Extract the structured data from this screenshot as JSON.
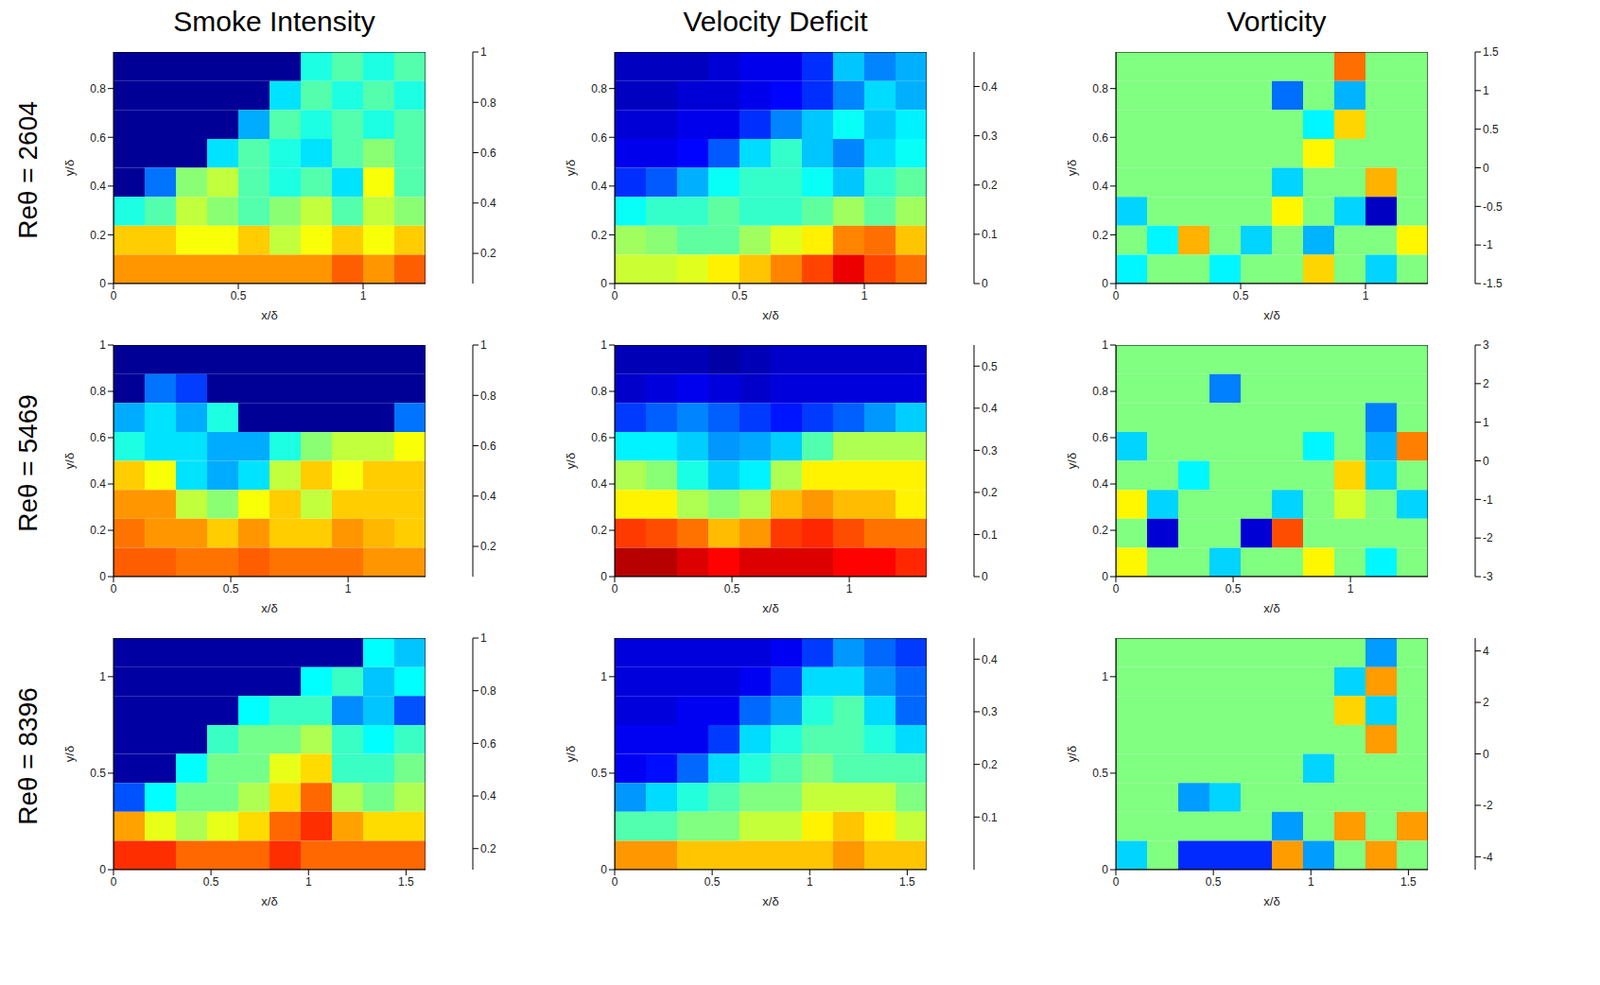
{
  "column_titles": [
    "Smoke Intensity",
    "Velocity Deficit",
    "Vorticity"
  ],
  "row_labels": [
    "Reθ = 2604",
    "Reθ = 5469",
    "Reθ = 8396"
  ],
  "chart_data": [
    {
      "type": "heatmap",
      "x_label": "x/δ",
      "y_label": "y/δ",
      "xlim": [
        0,
        1.25
      ],
      "ylim": [
        0,
        0.95
      ],
      "xticks": [
        0,
        0.5,
        1
      ],
      "yticks": [
        0,
        0.2,
        0.4,
        0.6,
        0.8
      ],
      "colorbar": {
        "range": [
          0.08,
          1
        ],
        "ticks": [
          0.2,
          0.4,
          0.6,
          0.8,
          1
        ]
      },
      "cells": [
        [
          0.1,
          0.1,
          0.1,
          0.1,
          0.1,
          0.1,
          0.45,
          0.5,
          0.45,
          0.5
        ],
        [
          0.1,
          0.1,
          0.1,
          0.1,
          0.1,
          0.4,
          0.5,
          0.45,
          0.5,
          0.45
        ],
        [
          0.1,
          0.1,
          0.1,
          0.1,
          0.35,
          0.5,
          0.45,
          0.5,
          0.45,
          0.5
        ],
        [
          0.1,
          0.1,
          0.1,
          0.4,
          0.5,
          0.45,
          0.4,
          0.5,
          0.55,
          0.5
        ],
        [
          0.1,
          0.3,
          0.55,
          0.6,
          0.5,
          0.45,
          0.5,
          0.4,
          0.65,
          0.5
        ],
        [
          0.45,
          0.5,
          0.6,
          0.55,
          0.5,
          0.55,
          0.6,
          0.5,
          0.6,
          0.55
        ],
        [
          0.7,
          0.7,
          0.65,
          0.65,
          0.7,
          0.6,
          0.65,
          0.7,
          0.65,
          0.7
        ],
        [
          0.75,
          0.75,
          0.75,
          0.75,
          0.75,
          0.75,
          0.75,
          0.8,
          0.75,
          0.8
        ]
      ]
    },
    {
      "type": "heatmap",
      "x_label": "x/δ",
      "y_label": "y/δ",
      "xlim": [
        0,
        1.25
      ],
      "ylim": [
        0,
        0.95
      ],
      "xticks": [
        0,
        0.5,
        1
      ],
      "yticks": [
        0,
        0.2,
        0.4,
        0.6,
        0.8
      ],
      "colorbar": {
        "range": [
          0,
          0.47
        ],
        "ticks": [
          0,
          0.1,
          0.2,
          0.3,
          0.4
        ]
      },
      "cells": [
        [
          0.03,
          0.03,
          0.03,
          0.04,
          0.05,
          0.05,
          0.08,
          0.15,
          0.12,
          0.14
        ],
        [
          0.03,
          0.03,
          0.04,
          0.04,
          0.05,
          0.06,
          0.08,
          0.12,
          0.16,
          0.14
        ],
        [
          0.04,
          0.04,
          0.05,
          0.05,
          0.08,
          0.12,
          0.15,
          0.18,
          0.15,
          0.17
        ],
        [
          0.05,
          0.05,
          0.06,
          0.1,
          0.16,
          0.2,
          0.15,
          0.12,
          0.16,
          0.18
        ],
        [
          0.08,
          0.1,
          0.14,
          0.18,
          0.2,
          0.2,
          0.18,
          0.15,
          0.2,
          0.22
        ],
        [
          0.18,
          0.2,
          0.2,
          0.22,
          0.2,
          0.2,
          0.22,
          0.25,
          0.22,
          0.25
        ],
        [
          0.25,
          0.24,
          0.22,
          0.22,
          0.25,
          0.28,
          0.3,
          0.35,
          0.36,
          0.32
        ],
        [
          0.27,
          0.27,
          0.28,
          0.3,
          0.32,
          0.35,
          0.38,
          0.42,
          0.38,
          0.36
        ]
      ]
    },
    {
      "type": "heatmap",
      "x_label": "x/δ",
      "y_label": "y/δ",
      "xlim": [
        0,
        1.25
      ],
      "ylim": [
        0,
        0.95
      ],
      "xticks": [
        0,
        0.5,
        1
      ],
      "yticks": [
        0,
        0.2,
        0.4,
        0.6,
        0.8
      ],
      "colorbar": {
        "range": [
          -1.5,
          1.5
        ],
        "ticks": [
          -1.5,
          -1,
          -0.5,
          0,
          0.5,
          1,
          1.5
        ]
      },
      "cells": [
        [
          0,
          0,
          0,
          0,
          0,
          0,
          0,
          0.8,
          0,
          0
        ],
        [
          0,
          0,
          0,
          0,
          0,
          -0.8,
          0,
          -0.6,
          0,
          0
        ],
        [
          0,
          0,
          0,
          0,
          0,
          0,
          -0.4,
          0.5,
          0,
          0
        ],
        [
          0,
          0,
          0,
          0,
          0,
          0,
          0.4,
          0,
          0,
          0
        ],
        [
          0,
          0,
          0,
          0,
          0,
          -0.5,
          0,
          0,
          0.6,
          0
        ],
        [
          -0.5,
          0,
          0,
          0,
          0,
          0.4,
          0,
          -0.5,
          -1.3,
          0
        ],
        [
          0,
          -0.4,
          0.6,
          0,
          -0.5,
          0,
          -0.6,
          0,
          0,
          0.4
        ],
        [
          -0.4,
          0,
          0,
          -0.4,
          0,
          0,
          0.5,
          0,
          -0.5,
          0
        ]
      ]
    },
    {
      "type": "heatmap",
      "x_label": "x/δ",
      "y_label": "y/δ",
      "xlim": [
        0,
        1.33
      ],
      "ylim": [
        0,
        1
      ],
      "xticks": [
        0,
        0.5,
        1
      ],
      "yticks": [
        0,
        0.2,
        0.4,
        0.6,
        0.8,
        1
      ],
      "colorbar": {
        "range": [
          0.08,
          1
        ],
        "ticks": [
          0.2,
          0.4,
          0.6,
          0.8,
          1
        ]
      },
      "cells": [
        [
          0.1,
          0.1,
          0.1,
          0.1,
          0.1,
          0.1,
          0.1,
          0.1,
          0.1,
          0.1
        ],
        [
          0.1,
          0.3,
          0.25,
          0.1,
          0.1,
          0.1,
          0.1,
          0.1,
          0.1,
          0.1
        ],
        [
          0.35,
          0.4,
          0.35,
          0.45,
          0.1,
          0.1,
          0.1,
          0.1,
          0.1,
          0.3
        ],
        [
          0.45,
          0.4,
          0.4,
          0.35,
          0.35,
          0.45,
          0.55,
          0.6,
          0.6,
          0.65
        ],
        [
          0.7,
          0.65,
          0.4,
          0.35,
          0.4,
          0.6,
          0.7,
          0.65,
          0.7,
          0.7
        ],
        [
          0.75,
          0.75,
          0.6,
          0.55,
          0.65,
          0.7,
          0.6,
          0.7,
          0.7,
          0.7
        ],
        [
          0.78,
          0.75,
          0.75,
          0.7,
          0.75,
          0.7,
          0.7,
          0.75,
          0.72,
          0.7
        ],
        [
          0.8,
          0.8,
          0.78,
          0.78,
          0.8,
          0.78,
          0.78,
          0.78,
          0.75,
          0.75
        ]
      ]
    },
    {
      "type": "heatmap",
      "x_label": "x/δ",
      "y_label": "y/δ",
      "xlim": [
        0,
        1.33
      ],
      "ylim": [
        0,
        1
      ],
      "xticks": [
        0,
        0.5,
        1
      ],
      "yticks": [
        0,
        0.2,
        0.4,
        0.6,
        0.8,
        1
      ],
      "colorbar": {
        "range": [
          0,
          0.55
        ],
        "ticks": [
          0,
          0.1,
          0.2,
          0.3,
          0.4,
          0.5
        ]
      },
      "cells": [
        [
          0.03,
          0.03,
          0.03,
          0.02,
          0.03,
          0.04,
          0.04,
          0.04,
          0.04,
          0.04
        ],
        [
          0.04,
          0.05,
          0.06,
          0.05,
          0.04,
          0.05,
          0.05,
          0.05,
          0.05,
          0.05
        ],
        [
          0.1,
          0.12,
          0.14,
          0.12,
          0.1,
          0.08,
          0.1,
          0.12,
          0.15,
          0.18
        ],
        [
          0.2,
          0.2,
          0.18,
          0.15,
          0.16,
          0.18,
          0.25,
          0.3,
          0.3,
          0.3
        ],
        [
          0.3,
          0.28,
          0.22,
          0.18,
          0.2,
          0.3,
          0.35,
          0.35,
          0.35,
          0.35
        ],
        [
          0.35,
          0.35,
          0.3,
          0.28,
          0.3,
          0.38,
          0.4,
          0.38,
          0.38,
          0.35
        ],
        [
          0.45,
          0.44,
          0.42,
          0.38,
          0.4,
          0.45,
          0.46,
          0.44,
          0.42,
          0.42
        ],
        [
          0.52,
          0.52,
          0.5,
          0.48,
          0.5,
          0.5,
          0.5,
          0.48,
          0.48,
          0.46
        ]
      ]
    },
    {
      "type": "heatmap",
      "x_label": "x/δ",
      "y_label": "y/δ",
      "xlim": [
        0,
        1.33
      ],
      "ylim": [
        0,
        1
      ],
      "xticks": [
        0,
        0.5,
        1
      ],
      "yticks": [
        0,
        0.2,
        0.4,
        0.6,
        0.8,
        1
      ],
      "colorbar": {
        "range": [
          -3,
          3
        ],
        "ticks": [
          -3,
          -2,
          -1,
          0,
          1,
          2,
          3
        ]
      },
      "cells": [
        [
          0,
          0,
          0,
          0,
          0,
          0,
          0,
          0,
          0,
          0
        ],
        [
          0,
          0,
          0,
          -1.5,
          0,
          0,
          0,
          0,
          0,
          0
        ],
        [
          0,
          0,
          0,
          0,
          0,
          0,
          0,
          0,
          -1.5,
          0
        ],
        [
          -1,
          0,
          0,
          0,
          0,
          0,
          -0.8,
          0,
          -1.2,
          1.5
        ],
        [
          0,
          0,
          -0.8,
          0,
          0,
          0,
          0,
          1,
          -1,
          0
        ],
        [
          0.8,
          -1,
          0,
          0,
          0,
          -1,
          0,
          0.5,
          0,
          -1
        ],
        [
          0,
          -2.5,
          0,
          0,
          -2.5,
          1.8,
          0,
          0,
          0,
          0
        ],
        [
          0.8,
          0,
          0,
          -1,
          0,
          0,
          0.8,
          0,
          -0.8,
          0
        ]
      ]
    },
    {
      "type": "heatmap",
      "x_label": "x/δ",
      "y_label": "y/δ",
      "xlim": [
        0,
        1.6
      ],
      "ylim": [
        0,
        1.2
      ],
      "xticks": [
        0,
        0.5,
        1,
        1.5
      ],
      "yticks": [
        0,
        0.5,
        1
      ],
      "colorbar": {
        "range": [
          0.12,
          1
        ],
        "ticks": [
          0.2,
          0.4,
          0.6,
          0.8,
          1
        ]
      },
      "cells": [
        [
          0.15,
          0.15,
          0.15,
          0.15,
          0.15,
          0.15,
          0.15,
          0.15,
          0.45,
          0.4
        ],
        [
          0.15,
          0.15,
          0.15,
          0.15,
          0.15,
          0.15,
          0.45,
          0.5,
          0.4,
          0.45
        ],
        [
          0.15,
          0.15,
          0.15,
          0.15,
          0.45,
          0.5,
          0.5,
          0.35,
          0.4,
          0.3
        ],
        [
          0.15,
          0.15,
          0.15,
          0.5,
          0.55,
          0.55,
          0.6,
          0.5,
          0.45,
          0.5
        ],
        [
          0.15,
          0.15,
          0.45,
          0.55,
          0.55,
          0.65,
          0.7,
          0.5,
          0.5,
          0.55
        ],
        [
          0.3,
          0.45,
          0.55,
          0.55,
          0.6,
          0.7,
          0.8,
          0.6,
          0.55,
          0.6
        ],
        [
          0.75,
          0.65,
          0.6,
          0.65,
          0.7,
          0.8,
          0.85,
          0.75,
          0.7,
          0.7
        ],
        [
          0.85,
          0.85,
          0.8,
          0.8,
          0.8,
          0.85,
          0.8,
          0.8,
          0.8,
          0.8
        ]
      ]
    },
    {
      "type": "heatmap",
      "x_label": "x/δ",
      "y_label": "y/δ",
      "xlim": [
        0,
        1.6
      ],
      "ylim": [
        0,
        1.2
      ],
      "xticks": [
        0,
        0.5,
        1,
        1.5
      ],
      "yticks": [
        0,
        0.5,
        1
      ],
      "colorbar": {
        "range": [
          0,
          0.44
        ],
        "ticks": [
          0.1,
          0.2,
          0.3,
          0.4
        ]
      },
      "cells": [
        [
          0.04,
          0.04,
          0.04,
          0.04,
          0.04,
          0.05,
          0.08,
          0.12,
          0.1,
          0.08
        ],
        [
          0.04,
          0.04,
          0.04,
          0.04,
          0.05,
          0.08,
          0.15,
          0.15,
          0.12,
          0.1
        ],
        [
          0.04,
          0.04,
          0.05,
          0.05,
          0.1,
          0.12,
          0.18,
          0.2,
          0.15,
          0.1
        ],
        [
          0.05,
          0.05,
          0.05,
          0.08,
          0.15,
          0.18,
          0.2,
          0.2,
          0.18,
          0.15
        ],
        [
          0.05,
          0.06,
          0.1,
          0.15,
          0.18,
          0.2,
          0.22,
          0.2,
          0.2,
          0.2
        ],
        [
          0.12,
          0.15,
          0.18,
          0.2,
          0.22,
          0.22,
          0.25,
          0.25,
          0.25,
          0.22
        ],
        [
          0.2,
          0.2,
          0.22,
          0.22,
          0.25,
          0.25,
          0.28,
          0.3,
          0.28,
          0.25
        ],
        [
          0.32,
          0.32,
          0.3,
          0.3,
          0.3,
          0.3,
          0.3,
          0.32,
          0.3,
          0.3
        ]
      ]
    },
    {
      "type": "heatmap",
      "x_label": "x/δ",
      "y_label": "y/δ",
      "xlim": [
        0,
        1.6
      ],
      "ylim": [
        0,
        1.2
      ],
      "xticks": [
        0,
        0.5,
        1,
        1.5
      ],
      "yticks": [
        0,
        0.5,
        1
      ],
      "colorbar": {
        "range": [
          -4.5,
          4.5
        ],
        "ticks": [
          -4,
          -2,
          0,
          2,
          4
        ]
      },
      "cells": [
        [
          0,
          0,
          0,
          0,
          0,
          0,
          0,
          0,
          -2,
          0
        ],
        [
          0,
          0,
          0,
          0,
          0,
          0,
          0,
          -1.5,
          2,
          0
        ],
        [
          0,
          0,
          0,
          0,
          0,
          0,
          0,
          1.5,
          -1.5,
          0
        ],
        [
          0,
          0,
          0,
          0,
          0,
          0,
          0,
          0,
          2,
          0
        ],
        [
          0,
          0,
          0,
          0,
          0,
          0,
          -1.5,
          0,
          0,
          0
        ],
        [
          0,
          0,
          -2,
          -1.5,
          0,
          0,
          0,
          0,
          0,
          0
        ],
        [
          0,
          0,
          0,
          0,
          0,
          -2,
          0,
          2,
          0,
          2
        ],
        [
          -1.5,
          0,
          -3,
          -3,
          -3,
          2,
          -2,
          0,
          2,
          0
        ]
      ]
    }
  ]
}
